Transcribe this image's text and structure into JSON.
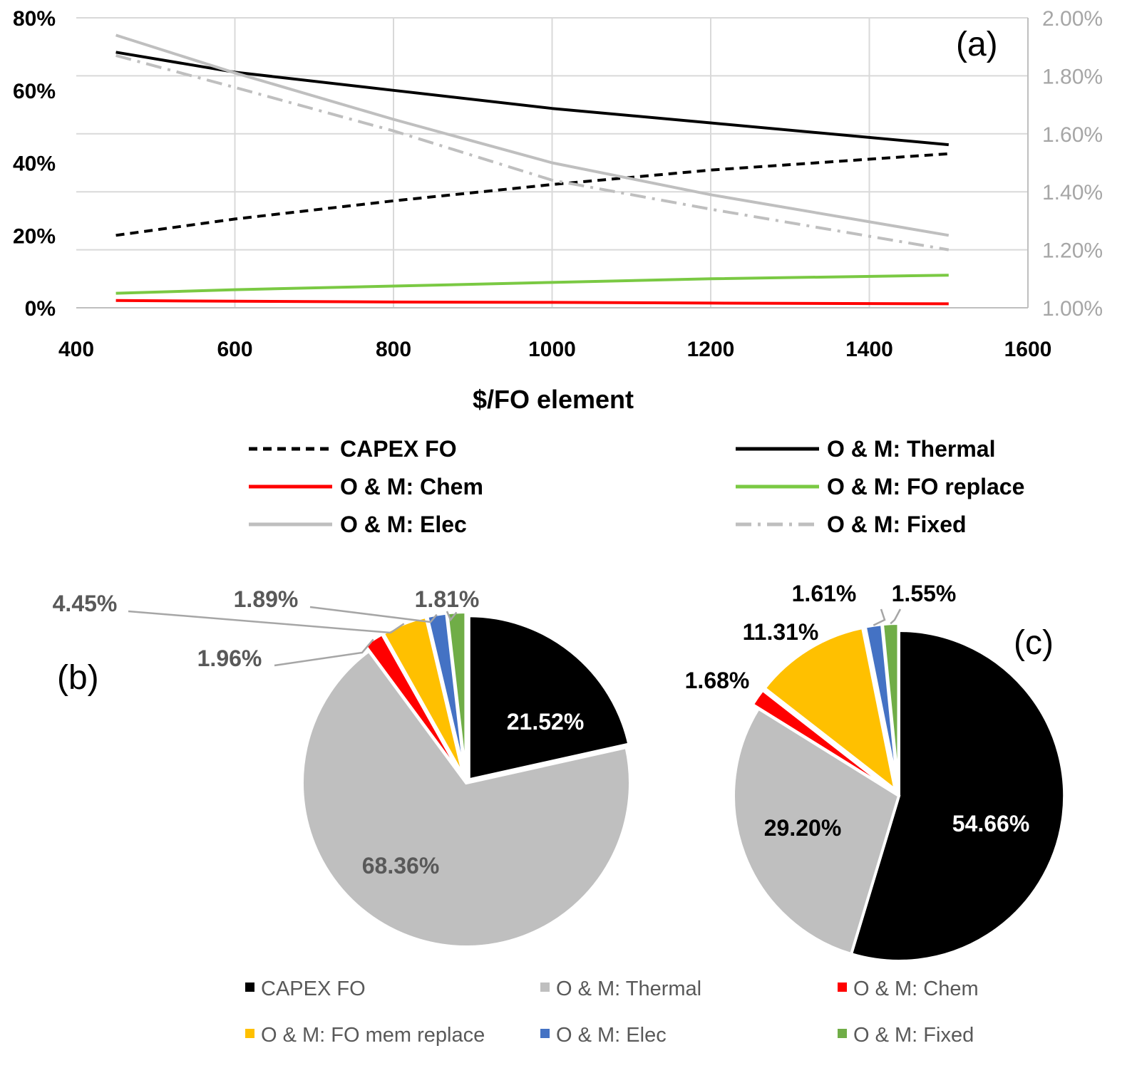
{
  "chart_data": [
    {
      "id": "a",
      "type": "line",
      "panel_label": "(a)",
      "xlabel": "$/FO element",
      "xlim": [
        400,
        1600
      ],
      "xticks": [
        "400",
        "600",
        "800",
        "1000",
        "1200",
        "1400",
        "1600"
      ],
      "ylim": [
        0,
        80
      ],
      "yticks": [
        "0%",
        "20%",
        "40%",
        "60%",
        "80%"
      ],
      "y2lim": [
        1.0,
        2.0
      ],
      "y2ticks": [
        "1.00%",
        "1.20%",
        "1.40%",
        "1.60%",
        "1.80%",
        "2.00%"
      ],
      "grid": true,
      "legend_position": "below",
      "x": [
        450,
        600,
        800,
        1000,
        1200,
        1500
      ],
      "series": [
        {
          "name": "CAPEX FO",
          "axis": "left",
          "color": "#000000",
          "dash": "12,8",
          "values": [
            20,
            24.5,
            29.5,
            34,
            38,
            42.5
          ]
        },
        {
          "name": "O & M: Thermal",
          "axis": "left",
          "color": "#000000",
          "dash": "",
          "values": [
            70.5,
            65,
            60,
            55,
            51,
            45
          ]
        },
        {
          "name": "O & M: Chem",
          "axis": "left",
          "color": "#ff0000",
          "dash": "",
          "values": [
            2,
            1.8,
            1.6,
            1.5,
            1.3,
            1.1
          ]
        },
        {
          "name": "O & M: FO replace",
          "axis": "left",
          "color": "#7ac943",
          "dash": "",
          "values": [
            4,
            5,
            6,
            7,
            8,
            9
          ]
        },
        {
          "name": "O & M: Elec",
          "axis": "right",
          "color": "#bfbfbf",
          "dash": "",
          "values": [
            1.94,
            1.81,
            1.65,
            1.5,
            1.39,
            1.25
          ]
        },
        {
          "name": "O & M: Fixed",
          "axis": "right",
          "color": "#bfbfbf",
          "dash": "22,9,4,9",
          "values": [
            1.87,
            1.76,
            1.61,
            1.44,
            1.34,
            1.2
          ]
        }
      ]
    },
    {
      "id": "b",
      "type": "pie",
      "panel_label": "(b)",
      "categories": [
        "CAPEX FO",
        "O & M: Thermal",
        "O & M: Chem",
        "O & M: FO mem replace",
        "O & M: Elec",
        "O & M: Fixed"
      ],
      "values": [
        21.52,
        68.36,
        1.96,
        4.45,
        1.89,
        1.81
      ],
      "labels": [
        "21.52%",
        "68.36%",
        "1.96%",
        "4.45%",
        "1.89%",
        "1.81%"
      ],
      "colors": [
        "#000000",
        "#bfbfbf",
        "#ff0000",
        "#ffc000",
        "#4472c4",
        "#70ad47"
      ]
    },
    {
      "id": "c",
      "type": "pie",
      "panel_label": "(c)",
      "categories": [
        "CAPEX FO",
        "O & M: Thermal",
        "O & M: Chem",
        "O & M: FO mem replace",
        "O & M: Elec",
        "O & M: Fixed"
      ],
      "values": [
        54.66,
        29.2,
        1.68,
        11.31,
        1.61,
        1.55
      ],
      "labels": [
        "54.66%",
        "29.20%",
        "1.68%",
        "11.31%",
        "1.61%",
        "1.55%"
      ],
      "colors": [
        "#000000",
        "#bfbfbf",
        "#ff0000",
        "#ffc000",
        "#4472c4",
        "#70ad47"
      ]
    }
  ]
}
